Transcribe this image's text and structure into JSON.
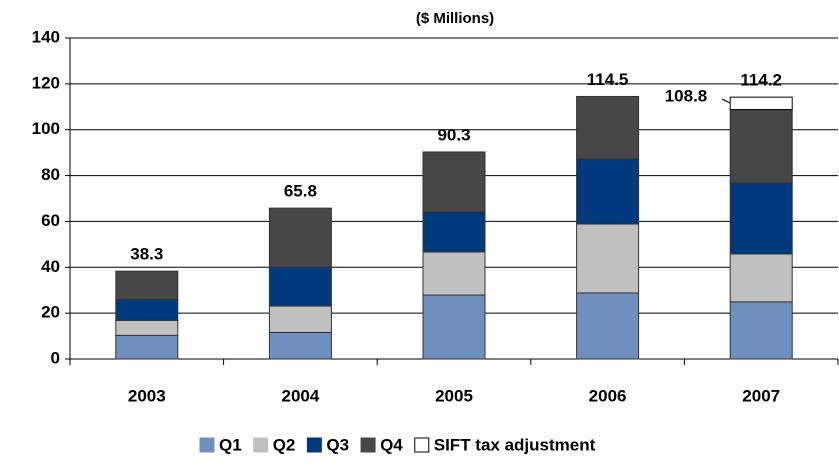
{
  "chart_data": {
    "type": "stacked_bar",
    "title": "($ Millions)",
    "categories": [
      "2003",
      "2004",
      "2005",
      "2006",
      "2007"
    ],
    "series": [
      {
        "name": "Q1",
        "color": "#6f8fbf",
        "values": [
          10.3,
          11.6,
          27.9,
          28.8,
          24.9
        ]
      },
      {
        "name": "Q2",
        "color": "#c0c0c0",
        "values": [
          6.5,
          11.5,
          18.8,
          30.1,
          20.9
        ]
      },
      {
        "name": "Q3",
        "color": "#003a7d",
        "values": [
          9.2,
          17.0,
          17.4,
          28.3,
          31.0
        ]
      },
      {
        "name": "Q4",
        "color": "#474747",
        "values": [
          12.3,
          25.7,
          26.2,
          27.3,
          32.0
        ]
      },
      {
        "name": "SIFT tax adjustment",
        "color": "#ffffff",
        "values": [
          null,
          null,
          null,
          null,
          5.4
        ]
      }
    ],
    "total_labels": [
      38.3,
      65.8,
      90.3,
      114.5,
      114.2
    ],
    "annotation": "108.8",
    "ylim": [
      0,
      140
    ],
    "yticks": [
      0,
      20,
      40,
      60,
      80,
      100,
      120,
      140
    ],
    "grid": true,
    "legend": "bottom"
  }
}
